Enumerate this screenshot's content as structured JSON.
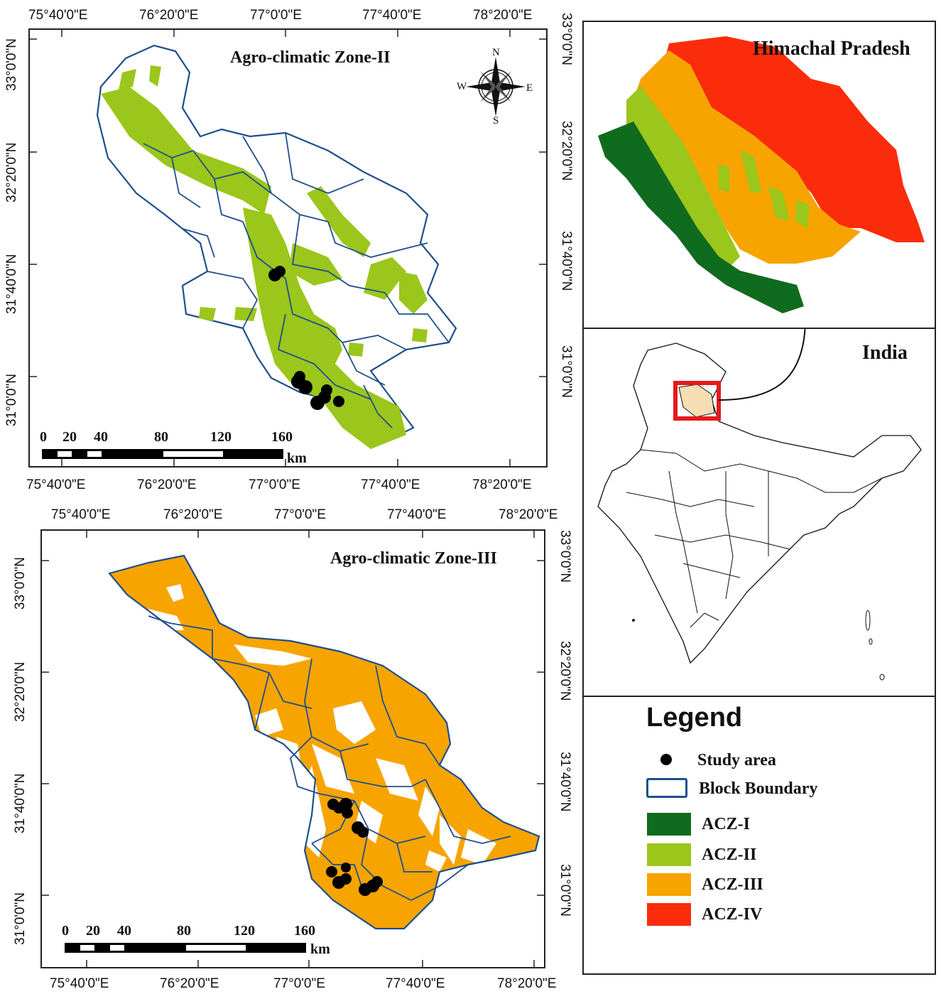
{
  "map1": {
    "title": "Agro-climatic Zone-II",
    "top_lon_labels": [
      "75°40'0\"E",
      "76°20'0\"E",
      "77°0'0\"E",
      "77°40'0\"E",
      "78°20'0\"E"
    ],
    "bottom_lon_labels": [
      "75°40'0\"E",
      "76°20'0\"E",
      "77°0'0\"E",
      "77°40'0\"E",
      "78°20'0\"E"
    ],
    "left_lat_labels": [
      "33°0'0\"N",
      "32°20'0\"N",
      "31°40'0\"N",
      "31°0'0\"N"
    ],
    "right_lat_labels": [
      "33°0'0\"N",
      "32°20'0\"N",
      "31°40'0\"N",
      "31°0'0\"N"
    ],
    "scale": {
      "ticks": [
        "0",
        "20",
        "40",
        "80",
        "120",
        "160"
      ],
      "unit": "km"
    },
    "compass": {
      "n": "N",
      "s": "S",
      "e": "E",
      "w": "W"
    }
  },
  "map2": {
    "title": "Agro-climatic Zone-III",
    "top_lon_labels": [
      "75°40'0\"E",
      "76°20'0\"E",
      "77°0'0\"E",
      "77°40'0\"E",
      "78°20'0\"E"
    ],
    "bottom_lon_labels": [
      "75°40'0\"E",
      "76°20'0\"E",
      "77°0'0\"E",
      "77°40'0\"E",
      "78°20'0\"E"
    ],
    "left_lat_labels": [
      "33°0'0\"N",
      "32°20'0\"N",
      "31°40'0\"N",
      "31°0'0\"N"
    ],
    "right_lat_labels": [
      "33°0'0\"N",
      "32°20'0\"N",
      "31°40'0\"N",
      "31°0'0\"N"
    ],
    "scale": {
      "ticks": [
        "0",
        "20",
        "40",
        "80",
        "120",
        "160"
      ],
      "unit": "km"
    }
  },
  "inset_hp": {
    "title": "Himachal Pradesh"
  },
  "inset_india": {
    "title": "India"
  },
  "legend": {
    "title": "Legend",
    "items": [
      {
        "label": "Study area",
        "kind": "dot",
        "color": "#000000"
      },
      {
        "label": "Block Boundary",
        "kind": "box",
        "color": "#1f4e8c"
      },
      {
        "label": "ACZ-I",
        "kind": "fill",
        "color": "#0f6b1e"
      },
      {
        "label": "ACZ-II",
        "kind": "fill",
        "color": "#9bc61b"
      },
      {
        "label": "ACZ-III",
        "kind": "fill",
        "color": "#f7a400"
      },
      {
        "label": "ACZ-IV",
        "kind": "fill",
        "color": "#fb2c0b"
      }
    ]
  },
  "colors": {
    "block_boundary": "#1f4e8c",
    "acz1": "#0f6b1e",
    "acz2": "#9bc61b",
    "acz3": "#f7a400",
    "acz4": "#fb2c0b",
    "hp_highlight": "#f5deb3",
    "inset_box": "#e41a1c"
  }
}
